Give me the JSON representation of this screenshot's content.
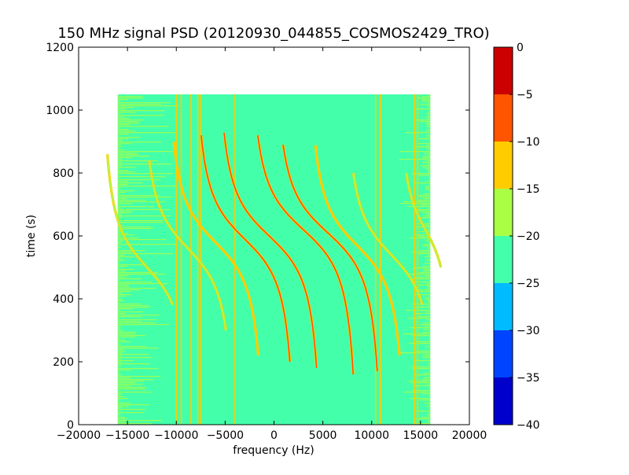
{
  "chart_data": {
    "type": "heatmap",
    "title": "150 MHz signal PSD (20120930_044855_COSMOS2429_TRO)",
    "xlabel": "frequency (Hz)",
    "ylabel": "time (s)",
    "xlim": [
      -20000,
      20000
    ],
    "ylim": [
      0,
      1200
    ],
    "xticks": [
      -20000,
      -15000,
      -10000,
      -5000,
      0,
      5000,
      10000,
      15000,
      20000
    ],
    "yticks": [
      0,
      200,
      400,
      600,
      800,
      1000,
      1200
    ],
    "grid": false,
    "data_extent": {
      "x": [
        -16000,
        16000
      ],
      "y": [
        0,
        1050
      ]
    },
    "background_level_range": [
      -25,
      -20
    ],
    "colorbar": {
      "range": [
        -40,
        0
      ],
      "ticks": [
        0,
        -5,
        -10,
        -15,
        -20,
        -25,
        -30,
        -35,
        -40
      ],
      "levels": [
        {
          "range": [
            -40,
            -35
          ],
          "color": "#0000cc"
        },
        {
          "range": [
            -35,
            -30
          ],
          "color": "#0044ff"
        },
        {
          "range": [
            -30,
            -25
          ],
          "color": "#00bbff"
        },
        {
          "range": [
            -25,
            -20
          ],
          "color": "#44ffaa"
        },
        {
          "range": [
            -20,
            -15
          ],
          "color": "#aaff44"
        },
        {
          "range": [
            -15,
            -10
          ],
          "color": "#ffcc00"
        },
        {
          "range": [
            -10,
            -5
          ],
          "color": "#ff5500"
        },
        {
          "range": [
            -5,
            0
          ],
          "color": "#cc0000"
        }
      ]
    },
    "vertical_lines_hz": [
      -10000,
      -9500,
      -8500,
      -7800,
      -7500,
      -4000,
      10400,
      10900,
      14400,
      14700
    ],
    "traces": [
      {
        "center_time_s": 620,
        "center_freq_hz": 3000,
        "span_hz": 6000,
        "t_start_s": 160,
        "t_end_s": 920,
        "level": -5
      },
      {
        "center_time_s": 610,
        "center_freq_hz": 5500,
        "span_hz": 6000,
        "t_start_s": 170,
        "t_end_s": 890,
        "level": -5
      },
      {
        "center_time_s": 600,
        "center_freq_hz": -500,
        "span_hz": 5800,
        "t_start_s": 180,
        "t_end_s": 930,
        "level": -5
      },
      {
        "center_time_s": 590,
        "center_freq_hz": -3000,
        "span_hz": 5600,
        "t_start_s": 200,
        "t_end_s": 920,
        "level": -5
      },
      {
        "center_time_s": 580,
        "center_freq_hz": -6000,
        "span_hz": 5400,
        "t_start_s": 220,
        "t_end_s": 900,
        "level": -10
      },
      {
        "center_time_s": 570,
        "center_freq_hz": 8500,
        "span_hz": 5400,
        "t_start_s": 220,
        "t_end_s": 890,
        "level": -10
      },
      {
        "center_time_s": 560,
        "center_freq_hz": -8800,
        "span_hz": 5200,
        "t_start_s": 300,
        "t_end_s": 840,
        "level": -15
      },
      {
        "center_time_s": 500,
        "center_freq_hz": -13000,
        "span_hz": 5000,
        "t_start_s": 380,
        "t_end_s": 860,
        "level": -15
      },
      {
        "center_time_s": 540,
        "center_freq_hz": 12000,
        "span_hz": 5200,
        "t_start_s": 380,
        "t_end_s": 800,
        "level": -15
      },
      {
        "center_time_s": 620,
        "center_freq_hz": 15500,
        "span_hz": 3000,
        "t_start_s": 500,
        "t_end_s": 800,
        "level": -15
      }
    ]
  }
}
